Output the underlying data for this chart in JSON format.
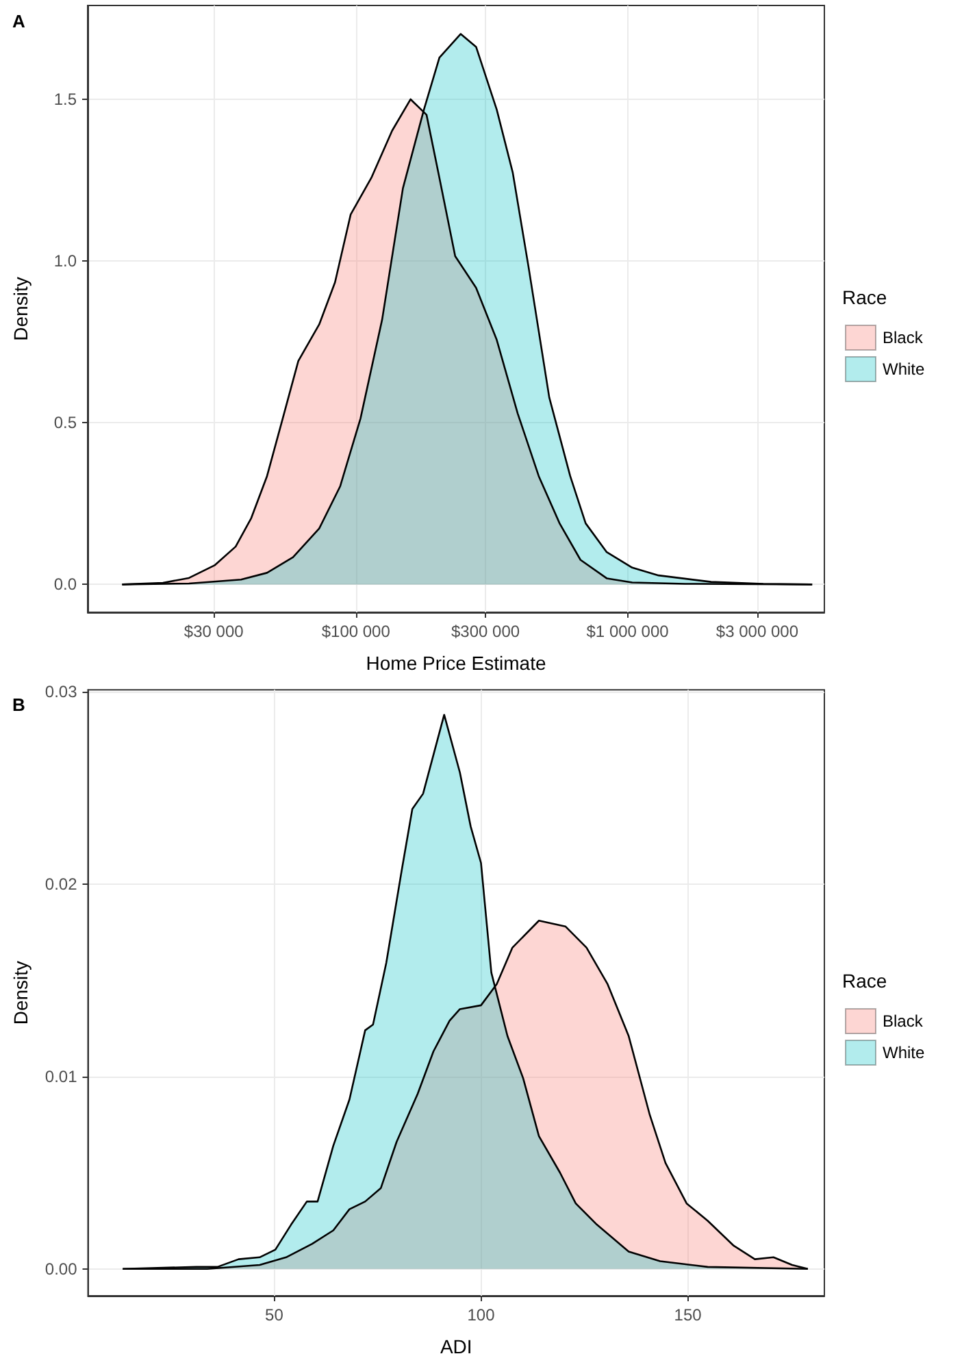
{
  "chart_data": [
    {
      "type": "area",
      "title": "A",
      "xlabel": "Home Price Estimate",
      "ylabel": "Density",
      "legend_title": "Race",
      "legend": "right",
      "grid": true,
      "log": "x",
      "xlim": [
        10300,
        5300000
      ],
      "xticks": [
        {
          "value": 30000,
          "label": "$30 000"
        },
        {
          "value": 100000,
          "label": "$100 000"
        },
        {
          "value": 300000,
          "label": "$300 000"
        },
        {
          "value": 1000000,
          "label": "$1 000 000"
        },
        {
          "value": 3000000,
          "label": "$3 000 000"
        }
      ],
      "ylim": [
        -0.086,
        1.79
      ],
      "yticks": [
        {
          "value": 0,
          "label": "0.0"
        },
        0.5,
        {
          "value": 1,
          "label": "1.0"
        },
        1.5
      ],
      "series": [
        {
          "name": "Black",
          "color": "#f8766d",
          "x": [
            13800,
            19500,
            24300,
            30300,
            36100,
            41200,
            47100,
            53800,
            61400,
            73300,
            83800,
            95700,
            114000,
            136000,
            159000,
            182000,
            203000,
            232000,
            277000,
            330000,
            394000,
            471000,
            562000,
            671000,
            838000,
            1040000,
            1630000,
            4780000
          ],
          "values": [
            0,
            0.005,
            0.02,
            0.06,
            0.117,
            0.205,
            0.335,
            0.513,
            0.691,
            0.804,
            0.934,
            1.144,
            1.257,
            1.403,
            1.5,
            1.452,
            1.257,
            1.015,
            0.917,
            0.756,
            0.529,
            0.335,
            0.189,
            0.076,
            0.019,
            0.006,
            0.002,
            0
          ]
        },
        {
          "name": "White",
          "color": "#00bfc4",
          "x": [
            13800,
            24300,
            37800,
            47100,
            58700,
            73300,
            87500,
            104000,
            125000,
            149000,
            178000,
            203000,
            243000,
            277000,
            330000,
            378000,
            432000,
            515000,
            615000,
            701000,
            838000,
            1040000,
            1300000,
            2030000,
            3160000,
            4780000
          ],
          "values": [
            0,
            0.003,
            0.015,
            0.036,
            0.084,
            0.173,
            0.303,
            0.513,
            0.82,
            1.225,
            1.468,
            1.629,
            1.702,
            1.662,
            1.468,
            1.273,
            0.982,
            0.578,
            0.335,
            0.189,
            0.1,
            0.052,
            0.028,
            0.008,
            0.002,
            0
          ]
        }
      ]
    },
    {
      "type": "area",
      "title": "B",
      "xlabel": "ADI",
      "ylabel": "Density",
      "legend_title": "Race",
      "legend": "right",
      "grid": true,
      "xlim": [
        5,
        183
      ],
      "xticks": [
        50,
        100,
        150
      ],
      "ylim": [
        -0.0014,
        0.0301
      ],
      "yticks": [
        {
          "value": 0,
          "label": "0.00"
        },
        {
          "value": 0.01,
          "label": "0.01"
        },
        {
          "value": 0.02,
          "label": "0.02"
        },
        {
          "value": 0.03,
          "label": "0.03"
        }
      ],
      "series": [
        {
          "name": "Black",
          "color": "#f8766d",
          "x": [
            13.4,
            33.8,
            46.5,
            52.9,
            59.2,
            64.3,
            68.2,
            72,
            75.8,
            79.6,
            84.7,
            88.5,
            92.4,
            94.9,
            100,
            103.8,
            107.6,
            114,
            120.4,
            125.5,
            130.6,
            135.7,
            140.8,
            144.6,
            149.7,
            154.8,
            161.1,
            166.2,
            170.7,
            175.2,
            179
          ],
          "values": [
            0,
            0,
            0.0002,
            0.0006,
            0.0013,
            0.002,
            0.0031,
            0.0035,
            0.0042,
            0.0066,
            0.0091,
            0.0113,
            0.0129,
            0.0135,
            0.0137,
            0.0148,
            0.0167,
            0.0181,
            0.0178,
            0.0167,
            0.0148,
            0.0121,
            0.008,
            0.0055,
            0.0034,
            0.0025,
            0.0012,
            0.0005,
            0.0006,
            0.0002,
            0
          ]
        },
        {
          "name": "White",
          "color": "#00bfc4",
          "x": [
            13.4,
            31.2,
            36.3,
            41.4,
            46.5,
            50.3,
            54.1,
            57.9,
            60.5,
            64.3,
            68.2,
            72,
            73.9,
            77.1,
            80.9,
            83.4,
            86,
            91.1,
            94.9,
            97.5,
            100,
            102.5,
            106.4,
            110.2,
            114,
            119.1,
            122.9,
            128,
            135.7,
            143.3,
            154.8,
            179
          ],
          "values": [
            0,
            0.0001,
            0.0001,
            0.0005,
            0.0006,
            0.001,
            0.0023,
            0.0035,
            0.0035,
            0.0064,
            0.0088,
            0.0124,
            0.0127,
            0.0159,
            0.0208,
            0.0239,
            0.0247,
            0.0288,
            0.0258,
            0.023,
            0.0211,
            0.0154,
            0.0121,
            0.0099,
            0.0069,
            0.005,
            0.0034,
            0.0023,
            0.0009,
            0.0004,
            0.0001,
            0
          ]
        }
      ]
    }
  ]
}
